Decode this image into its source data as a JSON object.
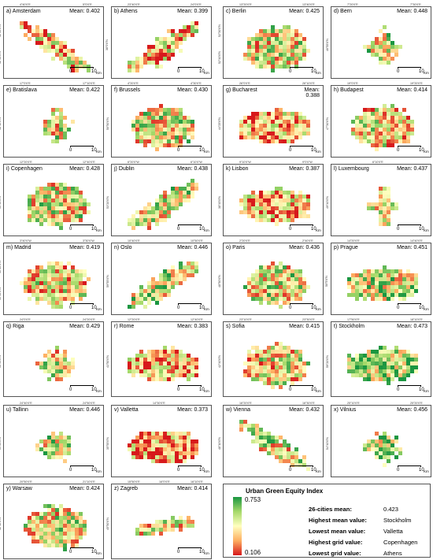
{
  "panels": [
    {
      "label": "a) Amsterdam",
      "mean": "Mean: 0.402",
      "seed": 11,
      "shape": "diag",
      "bias": -0.15,
      "top": [
        "4°40'0\"E",
        "5°0'0\"E"
      ],
      "left": [
        "52°20'0\"N",
        "52°30'0\"N"
      ],
      "scale": [
        "0",
        "10"
      ],
      "unit": "Km"
    },
    {
      "label": "b) Athens",
      "mean": "Mean: 0.399",
      "seed": 23,
      "shape": "diagup",
      "bias": -0.18,
      "top": [
        "23°40'0\"E",
        "24°0'0\"E"
      ],
      "left": [
        "38°0'0\"N"
      ],
      "scale": [
        "0",
        "10"
      ],
      "unit": "Km"
    },
    {
      "label": "c) Berlin",
      "mean": "Mean: 0.425",
      "seed": 37,
      "shape": "blob",
      "bias": -0.02,
      "top": [
        "13°20'0\"E",
        "13°40'0\"E"
      ],
      "left": [
        "52°30'0\"N",
        "52°40'0\"N"
      ],
      "scale": [
        "0",
        "10"
      ],
      "unit": "Km"
    },
    {
      "label": "d) Bern",
      "mean": "Mean: 0.448",
      "seed": 41,
      "shape": "small",
      "bias": 0.12,
      "top": [
        "7°20'0\"E",
        "7°30'0\"E"
      ],
      "left": [
        "46°55'0\"N"
      ],
      "scale": [
        "0",
        "10"
      ],
      "unit": "Km"
    },
    {
      "label": "e) Bratislava",
      "mean": "Mean: 0.422",
      "seed": 53,
      "shape": "small",
      "bias": 0.0,
      "top": [
        "17°0'0\"E",
        "17°10'0\"E"
      ],
      "left": [
        "48°10'0\"N"
      ],
      "scale": [
        "0",
        "10"
      ],
      "unit": "Km"
    },
    {
      "label": "f) Brussels",
      "mean": "Mean: 0.430",
      "seed": 67,
      "shape": "blob",
      "bias": 0.02,
      "top": [
        "4°20'0\"E",
        "4°30'0\"E"
      ],
      "left": [
        "50°50'0\"N"
      ],
      "scale": [
        "0",
        "10"
      ],
      "unit": "Km"
    },
    {
      "label": "g) Bucharest",
      "mean": "Mean:\n0.388",
      "seed": 71,
      "shape": "wide",
      "bias": -0.28,
      "top": [
        "26°0'0\"E",
        "26°10'0\"E"
      ],
      "left": [
        "44°25'0\"N"
      ],
      "scale": [
        "0",
        "10"
      ],
      "unit": "Km"
    },
    {
      "label": "h) Budapest",
      "mean": "Mean: 0.414",
      "seed": 83,
      "shape": "blob",
      "bias": -0.06,
      "top": [
        "19°0'0\"E",
        "19°20'0\"E"
      ],
      "left": [
        "47°30'0\"N"
      ],
      "scale": [
        "0",
        "10"
      ],
      "unit": "Km"
    },
    {
      "label": "i) Copenhagen",
      "mean": "Mean: 0.428",
      "seed": 97,
      "shape": "blob",
      "bias": 0.02,
      "top": [
        "12°20'0\"E",
        "12°40'0\"E"
      ],
      "left": [
        "55°40'0\"N"
      ],
      "scale": [
        "0",
        "10"
      ],
      "unit": "Km"
    },
    {
      "label": "j) Dublin",
      "mean": "Mean: 0.438",
      "seed": 101,
      "shape": "diagup",
      "bias": 0.06,
      "top": [
        "6°20'0\"W",
        "6°10'0\"W"
      ],
      "left": [
        "53°20'0\"N"
      ],
      "scale": [
        "0",
        "10"
      ],
      "unit": "Km"
    },
    {
      "label": "k) Lisbon",
      "mean": "Mean: 0.387",
      "seed": 113,
      "shape": "wide",
      "bias": -0.25,
      "top": [
        "9°10'0\"W",
        "9°0'0\"W"
      ],
      "left": [
        "38°45'0\"N"
      ],
      "scale": [
        "0",
        "10"
      ],
      "unit": "Km"
    },
    {
      "label": "l) Luxembourg",
      "mean": "Mean: 0.437",
      "seed": 127,
      "shape": "plus",
      "bias": 0.06,
      "top": [
        "6°10'0\"E"
      ],
      "left": [
        "49°40'0\"N"
      ],
      "scale": [
        "0",
        "10"
      ],
      "unit": "Km"
    },
    {
      "label": "m) Madrid",
      "mean": "Mean: 0.419",
      "seed": 131,
      "shape": "blob",
      "bias": -0.08,
      "top": [
        "3°40'0\"W",
        "3°30'0\"W"
      ],
      "left": [
        "40°20'0\"N",
        "40°30'0\"N"
      ],
      "scale": [
        "0",
        "10"
      ],
      "unit": "Km"
    },
    {
      "label": "n) Oslo",
      "mean": "Mean: 0.446",
      "seed": 149,
      "shape": "diagup",
      "bias": 0.12,
      "top": [
        "10°40'0\"E",
        "10°50'0\"E"
      ],
      "left": [
        "59°55'0\"N"
      ],
      "scale": [
        "0",
        "10"
      ],
      "unit": "Km"
    },
    {
      "label": "o) Paris",
      "mean": "Mean: 0.436",
      "seed": 157,
      "shape": "blob",
      "bias": 0.04,
      "top": [
        "2°20'0\"E",
        "2°40'0\"E"
      ],
      "left": [
        "48°50'0\"N"
      ],
      "scale": [
        "0",
        "10"
      ],
      "unit": "Km"
    },
    {
      "label": "p) Prague",
      "mean": "Mean: 0.451",
      "seed": 163,
      "shape": "wide",
      "bias": 0.14,
      "top": [
        "14°20'0\"E",
        "14°40'0\"E"
      ],
      "left": [
        "50°5'0\"N"
      ],
      "scale": [
        "0",
        "10"
      ],
      "unit": "Km"
    },
    {
      "label": "q) Riga",
      "mean": "Mean: 0.429",
      "seed": 173,
      "shape": "small",
      "bias": 0.02,
      "top": [
        "24°0'0\"E",
        "24°20'0\"E"
      ],
      "left": [
        "56°55'0\"N"
      ],
      "scale": [
        "0",
        "10"
      ],
      "unit": "Km"
    },
    {
      "label": "r) Rome",
      "mean": "Mean: 0.383",
      "seed": 181,
      "shape": "wide",
      "bias": -0.3,
      "top": [
        "12°20'0\"E",
        "12°40'0\"E"
      ],
      "left": [
        "41°50'0\"N"
      ],
      "scale": [
        "0",
        "10"
      ],
      "unit": "Km"
    },
    {
      "label": "s) Sofia",
      "mean": "Mean: 0.415",
      "seed": 191,
      "shape": "blob",
      "bias": -0.06,
      "top": [
        "23°10'0\"E",
        "23°30'0\"E"
      ],
      "left": [
        "42°40'0\"N"
      ],
      "scale": [
        "0",
        "10"
      ],
      "unit": "Km"
    },
    {
      "label": "t) Stockholm",
      "mean": "Mean: 0.473",
      "seed": 197,
      "shape": "wide",
      "bias": 0.3,
      "top": [
        "17°50'0\"E",
        "18°10'0\"E"
      ],
      "left": [
        "59°20'0\"N"
      ],
      "scale": [
        "0",
        "10"
      ],
      "unit": "Km"
    },
    {
      "label": "u) Tallinn",
      "mean": "Mean: 0.446",
      "seed": 211,
      "shape": "small",
      "bias": 0.12,
      "top": [
        "24°40'0\"E",
        "24°50'0\"E"
      ],
      "left": [
        "59°25'0\"N"
      ],
      "scale": [
        "0",
        "10"
      ],
      "unit": "Km"
    },
    {
      "label": "v) Valletta",
      "mean": "Mean: 0.373",
      "seed": 223,
      "shape": "wide",
      "bias": -0.4,
      "top": [
        "14°30'0\"E"
      ],
      "left": [
        "35°55'0\"N"
      ],
      "scale": [
        "0",
        "10"
      ],
      "unit": "Km"
    },
    {
      "label": "w) Vienna",
      "mean": "Mean: 0.432",
      "seed": 227,
      "shape": "diag",
      "bias": 0.02,
      "top": [
        "16°20'0\"E",
        "16°30'0\"E"
      ],
      "left": [
        "48°10'0\"N"
      ],
      "scale": [
        "0",
        "10"
      ],
      "unit": "Km"
    },
    {
      "label": "x) Vilnius",
      "mean": "Mean: 0.456",
      "seed": 233,
      "shape": "small",
      "bias": 0.16,
      "top": [
        "25°10'0\"E",
        "25°20'0\"E"
      ],
      "left": [
        "54°40'0\"N"
      ],
      "scale": [
        "0",
        "10"
      ],
      "unit": "Km"
    },
    {
      "label": "y) Warsaw",
      "mean": "Mean: 0.424",
      "seed": 239,
      "shape": "blob",
      "bias": 0.0,
      "top": [
        "20°50'0\"E",
        "21°10'0\"E"
      ],
      "left": [
        "52°10'0\"N"
      ],
      "scale": [
        "0",
        "10"
      ],
      "unit": "Km"
    },
    {
      "label": "z) Zagreb",
      "mean": "Mean: 0.414",
      "seed": 251,
      "shape": "diagflat",
      "bias": -0.06,
      "top": [
        "15°50'0\"E",
        "16°0'0\"E",
        "16°10'0\"E"
      ],
      "left": [
        "45°50'0\"N"
      ],
      "scale": [
        "0",
        "10"
      ],
      "unit": "Km"
    }
  ],
  "legend": {
    "title": "Urban Green Equity Index",
    "max": "0.753",
    "min": "0.106",
    "colors": [
      "#1a9641",
      "#a6d96a",
      "#ffffbf",
      "#fdae61",
      "#d7191c"
    ],
    "rows": [
      {
        "k": "26-cities mean:",
        "v": "0.423"
      },
      {
        "k": "Highest mean value:",
        "v": "Stockholm"
      },
      {
        "k": "Lowest mean value:",
        "v": "Valletta"
      },
      {
        "k": "Highest grid value:",
        "v": "Copenhagen"
      },
      {
        "k": "Lowest grid value:",
        "v": "Athens"
      }
    ]
  }
}
